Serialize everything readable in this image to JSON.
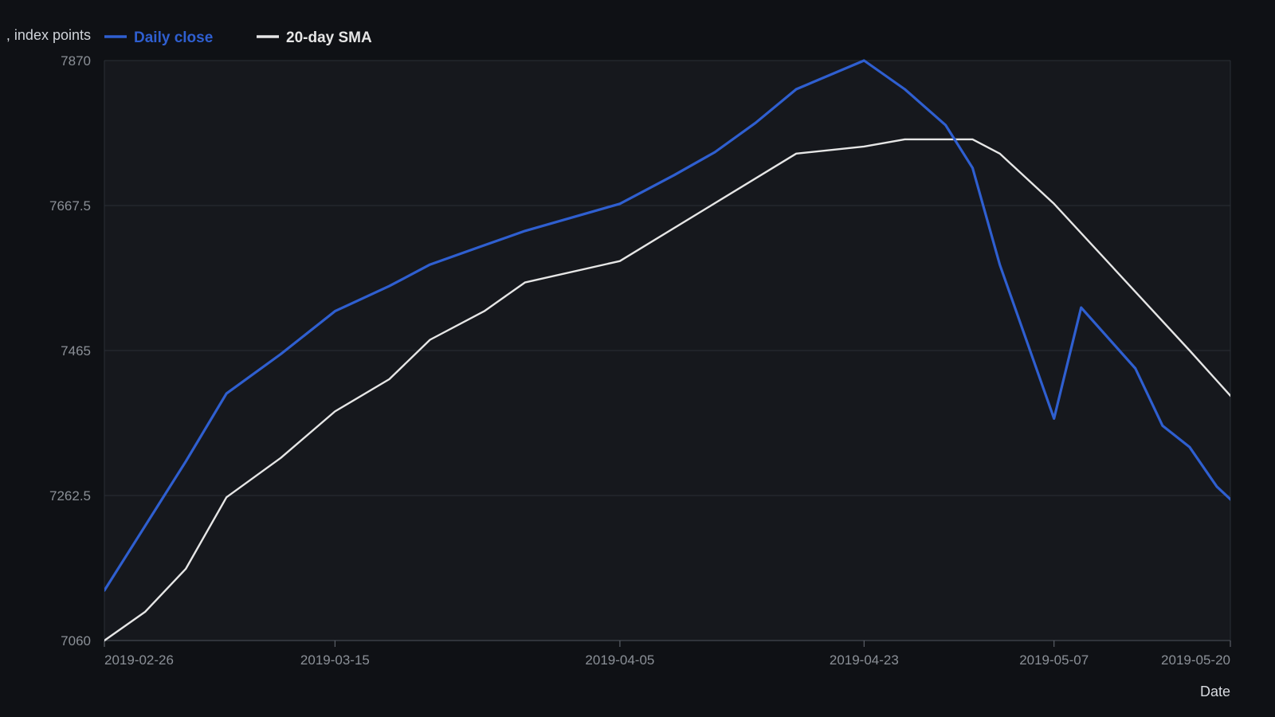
{
  "chart_data": {
    "type": "line",
    "ylabel": ", index points",
    "xlabel": "Date",
    "ylim": [
      7060,
      7870
    ],
    "yticks": [
      7060,
      7262.5,
      7465,
      7667.5,
      7870
    ],
    "ytick_labels": [
      "7060",
      "7262.5",
      "7465",
      "7667.5",
      "7870"
    ],
    "xlim": [
      "2019-02-26",
      "2019-05-20"
    ],
    "xticks": [
      "2019-02-26",
      "2019-03-15",
      "2019-04-05",
      "2019-04-23",
      "2019-05-07",
      "2019-05-20"
    ],
    "grid": true,
    "legend_position": "top-left",
    "series": [
      {
        "name": "Daily close",
        "color": "#2f5fd0",
        "points": [
          {
            "x": "2019-02-26",
            "y": 7130
          },
          {
            "x": "2019-03-01",
            "y": 7220
          },
          {
            "x": "2019-03-04",
            "y": 7310
          },
          {
            "x": "2019-03-07",
            "y": 7405
          },
          {
            "x": "2019-03-11",
            "y": 7460
          },
          {
            "x": "2019-03-15",
            "y": 7520
          },
          {
            "x": "2019-03-19",
            "y": 7555
          },
          {
            "x": "2019-03-22",
            "y": 7585
          },
          {
            "x": "2019-03-26",
            "y": 7612
          },
          {
            "x": "2019-03-29",
            "y": 7632
          },
          {
            "x": "2019-04-05",
            "y": 7670
          },
          {
            "x": "2019-04-09",
            "y": 7710
          },
          {
            "x": "2019-04-12",
            "y": 7742
          },
          {
            "x": "2019-04-15",
            "y": 7783
          },
          {
            "x": "2019-04-18",
            "y": 7830
          },
          {
            "x": "2019-04-23",
            "y": 7870
          },
          {
            "x": "2019-04-26",
            "y": 7830
          },
          {
            "x": "2019-04-29",
            "y": 7780
          },
          {
            "x": "2019-05-01",
            "y": 7720
          },
          {
            "x": "2019-05-03",
            "y": 7585
          },
          {
            "x": "2019-05-07",
            "y": 7370
          },
          {
            "x": "2019-05-09",
            "y": 7525
          },
          {
            "x": "2019-05-13",
            "y": 7440
          },
          {
            "x": "2019-05-15",
            "y": 7360
          },
          {
            "x": "2019-05-17",
            "y": 7330
          },
          {
            "x": "2019-05-19",
            "y": 7275
          },
          {
            "x": "2019-05-22",
            "y": 7222
          }
        ]
      },
      {
        "name": "20-day SMA",
        "color": "#e6e6e6",
        "points": [
          {
            "x": "2019-02-26",
            "y": 7060
          },
          {
            "x": "2019-03-01",
            "y": 7100
          },
          {
            "x": "2019-03-04",
            "y": 7160
          },
          {
            "x": "2019-03-07",
            "y": 7260
          },
          {
            "x": "2019-03-11",
            "y": 7315
          },
          {
            "x": "2019-03-15",
            "y": 7380
          },
          {
            "x": "2019-03-19",
            "y": 7425
          },
          {
            "x": "2019-03-22",
            "y": 7480
          },
          {
            "x": "2019-03-26",
            "y": 7520
          },
          {
            "x": "2019-03-29",
            "y": 7560
          },
          {
            "x": "2019-04-05",
            "y": 7590
          },
          {
            "x": "2019-04-18",
            "y": 7740
          },
          {
            "x": "2019-04-23",
            "y": 7750
          },
          {
            "x": "2019-04-26",
            "y": 7760
          },
          {
            "x": "2019-05-01",
            "y": 7760
          },
          {
            "x": "2019-05-03",
            "y": 7740
          },
          {
            "x": "2019-05-07",
            "y": 7670
          },
          {
            "x": "2019-05-17",
            "y": 7465
          },
          {
            "x": "2019-05-22",
            "y": 7360
          }
        ]
      }
    ]
  }
}
